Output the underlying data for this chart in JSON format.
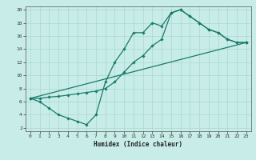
{
  "xlabel": "Humidex (Indice chaleur)",
  "bg_color": "#c8ede8",
  "line_color": "#1a7a6a",
  "grid_color": "#a8d8d0",
  "xlim": [
    -0.5,
    23.5
  ],
  "ylim": [
    1.5,
    20.5
  ],
  "xticks": [
    0,
    1,
    2,
    3,
    4,
    5,
    6,
    7,
    8,
    9,
    10,
    11,
    12,
    13,
    14,
    15,
    16,
    17,
    18,
    19,
    20,
    21,
    22,
    23
  ],
  "yticks": [
    2,
    4,
    6,
    8,
    10,
    12,
    14,
    16,
    18,
    20
  ],
  "line1_x": [
    0,
    1,
    2,
    3,
    4,
    5,
    6,
    7,
    8,
    9,
    10,
    11,
    12,
    13,
    14,
    15,
    16,
    17,
    18,
    19,
    20,
    21,
    22,
    23
  ],
  "line1_y": [
    6.5,
    6.0,
    5.0,
    4.0,
    3.5,
    3.0,
    2.5,
    4.0,
    9.0,
    12.0,
    14.0,
    16.5,
    16.5,
    18.0,
    17.5,
    19.5,
    20.0,
    19.0,
    18.0,
    17.0,
    16.5,
    15.5,
    15.0,
    15.0
  ],
  "line2_x": [
    0,
    1,
    2,
    3,
    4,
    5,
    6,
    7,
    8,
    9,
    10,
    11,
    12,
    13,
    14,
    15,
    16,
    17,
    18,
    19,
    20,
    21,
    22,
    23
  ],
  "line2_y": [
    6.5,
    6.5,
    6.7,
    6.8,
    7.0,
    7.2,
    7.4,
    7.6,
    8.0,
    9.0,
    10.5,
    12.0,
    13.0,
    14.5,
    15.5,
    19.5,
    20.0,
    19.0,
    18.0,
    17.0,
    16.5,
    15.5,
    15.0,
    15.0
  ],
  "line3_x": [
    0,
    23
  ],
  "line3_y": [
    6.5,
    15.0
  ]
}
